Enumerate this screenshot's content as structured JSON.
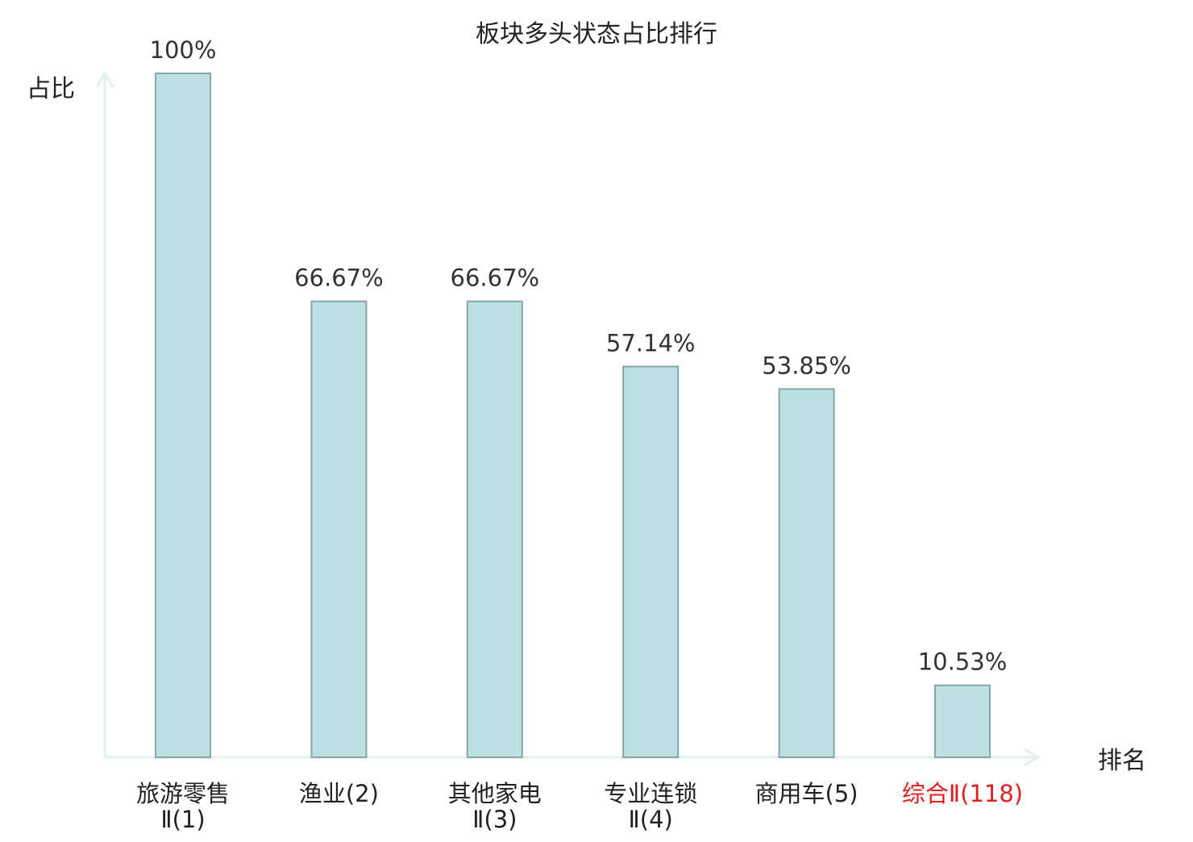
{
  "chart_data": {
    "type": "bar",
    "title": "板块多头状态占比排行",
    "ylabel": "占比",
    "xlabel": "排名",
    "ylim": [
      0,
      100
    ],
    "grid": false,
    "categories": [
      {
        "line1": "旅游零售",
        "line2": "Ⅱ(1)",
        "highlight": false
      },
      {
        "line1": "渔业(2)",
        "line2": "",
        "highlight": false
      },
      {
        "line1": "其他家电",
        "line2": "Ⅱ(3)",
        "highlight": false
      },
      {
        "line1": "专业连锁",
        "line2": "Ⅱ(4)",
        "highlight": false
      },
      {
        "line1": "商用车(5)",
        "line2": "",
        "highlight": false
      },
      {
        "line1": "综合Ⅱ(118)",
        "line2": "",
        "highlight": true
      }
    ],
    "values": [
      100,
      66.67,
      66.67,
      57.14,
      53.85,
      10.53
    ],
    "value_labels": [
      "100%",
      "66.67%",
      "66.67%",
      "57.14%",
      "53.85%",
      "10.53%"
    ]
  },
  "colors": {
    "bar_fill": "#bde0e3",
    "bar_stroke": "#86a6a9",
    "axis": "#dff0ee",
    "text": "#222222",
    "value_text": "#333333",
    "highlight_text": "#e02020"
  }
}
